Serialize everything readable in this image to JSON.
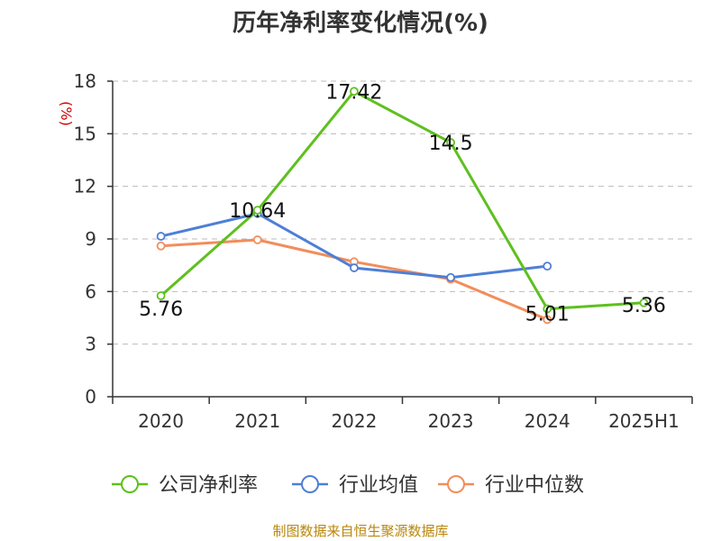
{
  "title": "历年净利率变化情况(%)",
  "source": "制图数据来自恒生聚源数据库",
  "chart_data": {
    "type": "line",
    "title": "历年净利率变化情况(%)",
    "ylabel": "(%)",
    "xlabel": "",
    "categories": [
      "2020",
      "2021",
      "2022",
      "2023",
      "2024",
      "2025H1"
    ],
    "ylim": [
      0,
      18
    ],
    "yticks": [
      0,
      3,
      6,
      9,
      12,
      15,
      18
    ],
    "grid": true,
    "legend_position": "bottom",
    "series": [
      {
        "name": "公司净利率",
        "color": "#5ec01e",
        "values": [
          5.76,
          10.64,
          17.42,
          14.5,
          5.01,
          5.36
        ],
        "labels": [
          "5.76",
          "10.64",
          "17.42",
          "14.5",
          "5.01",
          "5.36"
        ]
      },
      {
        "name": "行业均值",
        "color": "#4e7fd6",
        "values": [
          9.15,
          10.45,
          7.35,
          6.8,
          7.45,
          null
        ],
        "labels": []
      },
      {
        "name": "行业中位数",
        "color": "#f28d5a",
        "values": [
          8.6,
          8.95,
          7.7,
          6.7,
          4.4,
          null
        ],
        "labels": []
      }
    ]
  }
}
